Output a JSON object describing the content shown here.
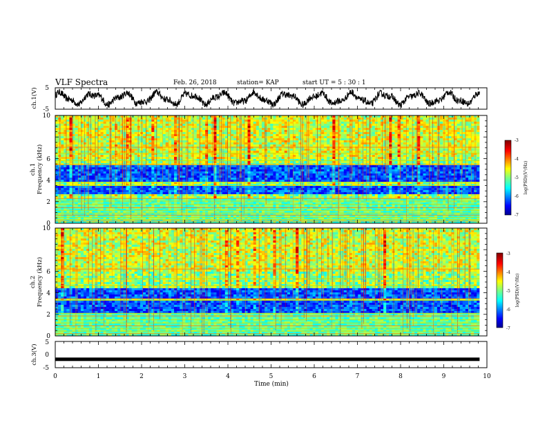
{
  "header": {
    "title": "VLF Spectra",
    "date": "Feb. 26, 2018",
    "station": "station= KAP",
    "start": "start  UT =  5 : 30 : 1"
  },
  "chart_data": [
    {
      "type": "line",
      "name": "ch1-waveform",
      "ylabel": "ch.1(V)",
      "ylim": [
        -5,
        5
      ],
      "yticks": [
        -5,
        5
      ],
      "xlim": [
        0,
        10
      ],
      "x_extent": [
        0,
        9.83
      ],
      "description_values": {
        "amplitude_range_V": [
          -4.5,
          4.8
        ],
        "oscillation_period_min": 0.75
      }
    },
    {
      "type": "heatmap",
      "name": "ch1-spectrogram",
      "ylabel": "ch.1",
      "ylabel2": "Frequency  (kHz)",
      "ylim": [
        0,
        10
      ],
      "yticks": [
        0,
        2,
        4,
        6,
        8,
        10
      ],
      "xlim": [
        0,
        10
      ],
      "x_extent": [
        0,
        9.83
      ],
      "low_power_bands_kHz": [
        [
          2.6,
          3.4
        ],
        [
          3.9,
          4.2
        ],
        [
          4.3,
          5.3
        ]
      ],
      "hum_lines_kHz": [
        0.2,
        0.35,
        0.55,
        0.75,
        0.95,
        1.2,
        1.45,
        1.75,
        2.05,
        2.3,
        3.5,
        3.8,
        5.45,
        5.8,
        6.5,
        7.05
      ],
      "colorbar": {
        "label": "log(PSD)(V²/Hz)",
        "ticks": [
          -3,
          -4,
          -5,
          -6,
          -7
        ],
        "range": [
          -7,
          -3
        ]
      }
    },
    {
      "type": "heatmap",
      "name": "ch2-spectrogram",
      "ylabel": "ch.2",
      "ylabel2": "Frequency  (kHz)",
      "ylim": [
        0,
        10
      ],
      "yticks": [
        0,
        2,
        4,
        6,
        8,
        10
      ],
      "xlim": [
        0,
        10
      ],
      "x_extent": [
        0,
        9.83
      ],
      "low_power_bands_kHz": [
        [
          2.2,
          3.2
        ],
        [
          3.5,
          4.5
        ]
      ],
      "hum_lines_kHz": [
        0.2,
        0.45,
        0.7,
        0.95,
        1.2,
        1.5,
        1.85,
        2.1,
        3.3,
        3.45,
        4.65,
        5.3,
        6.2
      ],
      "colorbar": {
        "label": "log(PSD)(V²/Hz)",
        "ticks": [
          -3,
          -4,
          -5,
          -6,
          -7
        ],
        "range": [
          -7,
          -3
        ]
      }
    },
    {
      "type": "line",
      "name": "ch3-waveform",
      "ylabel": "ch.3(V)",
      "ylim": [
        -5,
        5
      ],
      "yticks": [
        -5,
        0,
        5
      ],
      "yticklabels": [
        "-5",
        "0",
        "5"
      ],
      "xlim": [
        0,
        10
      ],
      "x_extent": [
        0,
        9.83
      ],
      "level_V": -1.8,
      "xlabel": "Time  (min)",
      "xticks": [
        0,
        1,
        2,
        3,
        4,
        5,
        6,
        7,
        8,
        9,
        10
      ]
    }
  ],
  "colors": {
    "jet": [
      "#00008f",
      "#0000ff",
      "#007fff",
      "#00ffff",
      "#7fff7f",
      "#ffff00",
      "#ff7f00",
      "#ff0000",
      "#7f0000"
    ]
  }
}
